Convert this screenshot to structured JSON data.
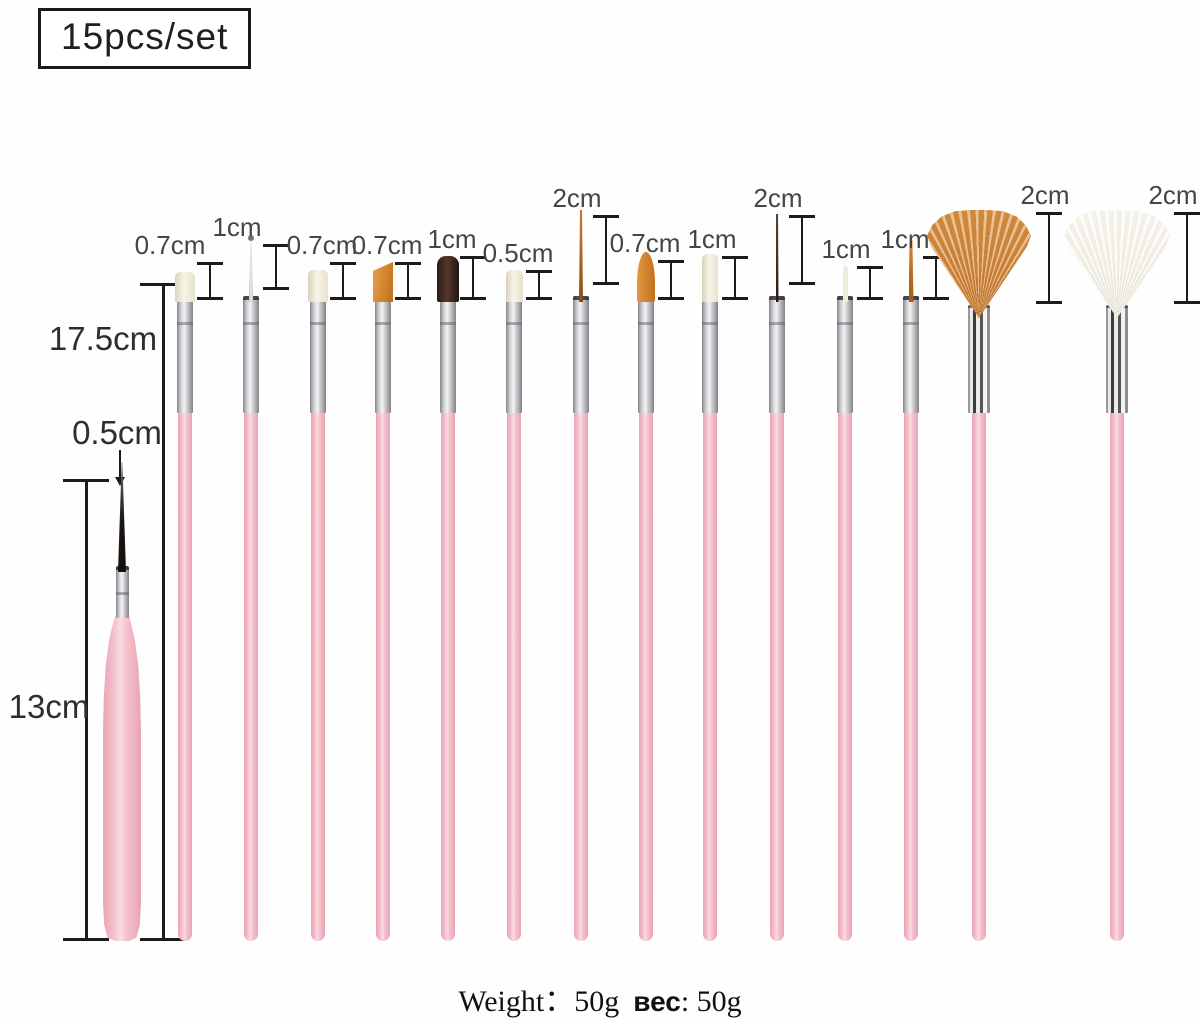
{
  "title": "15pcs/set",
  "side_labels": {
    "tall_length": "17.5cm",
    "short_tip_size": "0.5cm",
    "short_length": "13cm"
  },
  "brushes": [
    {
      "tip_label": "0.7cm",
      "tip_type": "flat white nylon brush"
    },
    {
      "tip_label": "1cm",
      "tip_type": "metal dotting needle"
    },
    {
      "tip_label": "0.7cm",
      "tip_type": "flat white nylon brush"
    },
    {
      "tip_label": "0.7cm",
      "tip_type": "angled orange nylon brush"
    },
    {
      "tip_label": "1cm",
      "tip_type": "flat dark sable brush"
    },
    {
      "tip_label": "0.5cm",
      "tip_type": "small flat white brush"
    },
    {
      "tip_label": "2cm",
      "tip_type": "long orange striper brush"
    },
    {
      "tip_label": "0.7cm",
      "tip_type": "oval orange nylon brush"
    },
    {
      "tip_label": "1cm",
      "tip_type": "flat white nylon brush"
    },
    {
      "tip_label": "2cm",
      "tip_type": "long dark liner brush"
    },
    {
      "tip_label": "1cm",
      "tip_type": "short white liner brush"
    },
    {
      "tip_label": "1cm",
      "tip_type": "orange liner brush"
    },
    {
      "tip_label": "2cm",
      "tip_type": "orange fan brush"
    },
    {
      "tip_label": "2cm",
      "tip_type": "white fan brush"
    }
  ],
  "short_brush": {
    "tip_type": "fine black liner brush",
    "tip_size": "0.5cm",
    "length": "13cm"
  },
  "footer": {
    "weight_en": "Weight：50g",
    "weight_ru_label": "вес",
    "weight_ru_value": ": 50g"
  },
  "colors": {
    "handle_pink": "#f4c0cb",
    "handle_pink_edge": "#e8a4b4",
    "handle_pink_highlight": "#fbdbe2",
    "ferrule_silver": "#d9d9dd",
    "bristle_white": "#f4f0df",
    "bristle_orange": "#cd7c2a",
    "bristle_dark": "#39261c",
    "fan_orange": "#c87f35",
    "fan_white": "#efece1",
    "annotation_text": "#454545",
    "line_color": "#1c1c1c"
  }
}
